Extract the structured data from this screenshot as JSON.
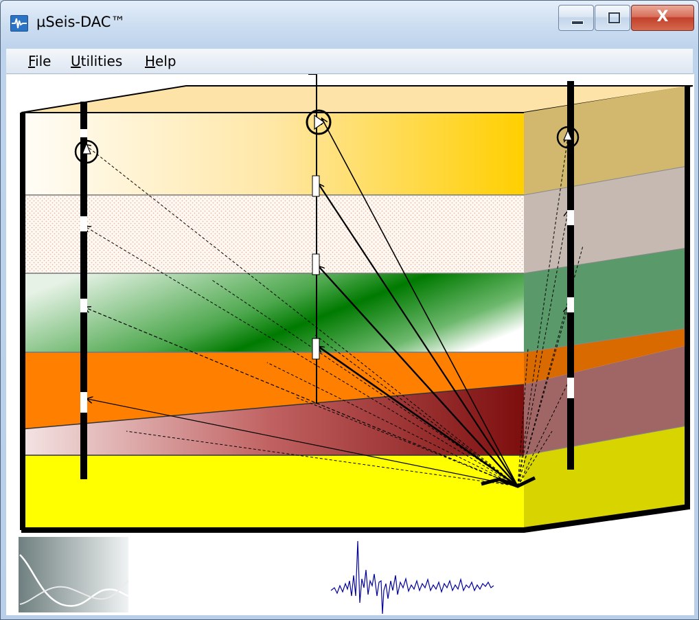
{
  "window": {
    "title": "µSeis-DAC™",
    "controls": {
      "minimize": "—",
      "maximize": "□",
      "close": "X"
    }
  },
  "menu": {
    "items": [
      {
        "mnemonic": "F",
        "rest": "ile"
      },
      {
        "mnemonic": "U",
        "rest": "tilities"
      },
      {
        "mnemonic": "H",
        "rest": "elp"
      }
    ]
  },
  "icons": {
    "app": "seismic-waveform-icon",
    "thumbnail": "waveform-thumbnail-icon"
  },
  "colors": {
    "layer_top_front": "#ffd21a",
    "layer_top_side": "#d1b86e",
    "layer_sand_side": "#c6b9b2",
    "layer_green": "#0a7d0a",
    "layer_green_side": "#5a9a6a",
    "layer_orange": "#ff7f00",
    "layer_orange_side": "#d86a00",
    "layer_maroon": "#8b1a1a",
    "layer_maroon_side": "#a06666",
    "layer_yellow": "#ffff00",
    "layer_yellow_side": "#d8d400",
    "waveform": "#000099"
  }
}
